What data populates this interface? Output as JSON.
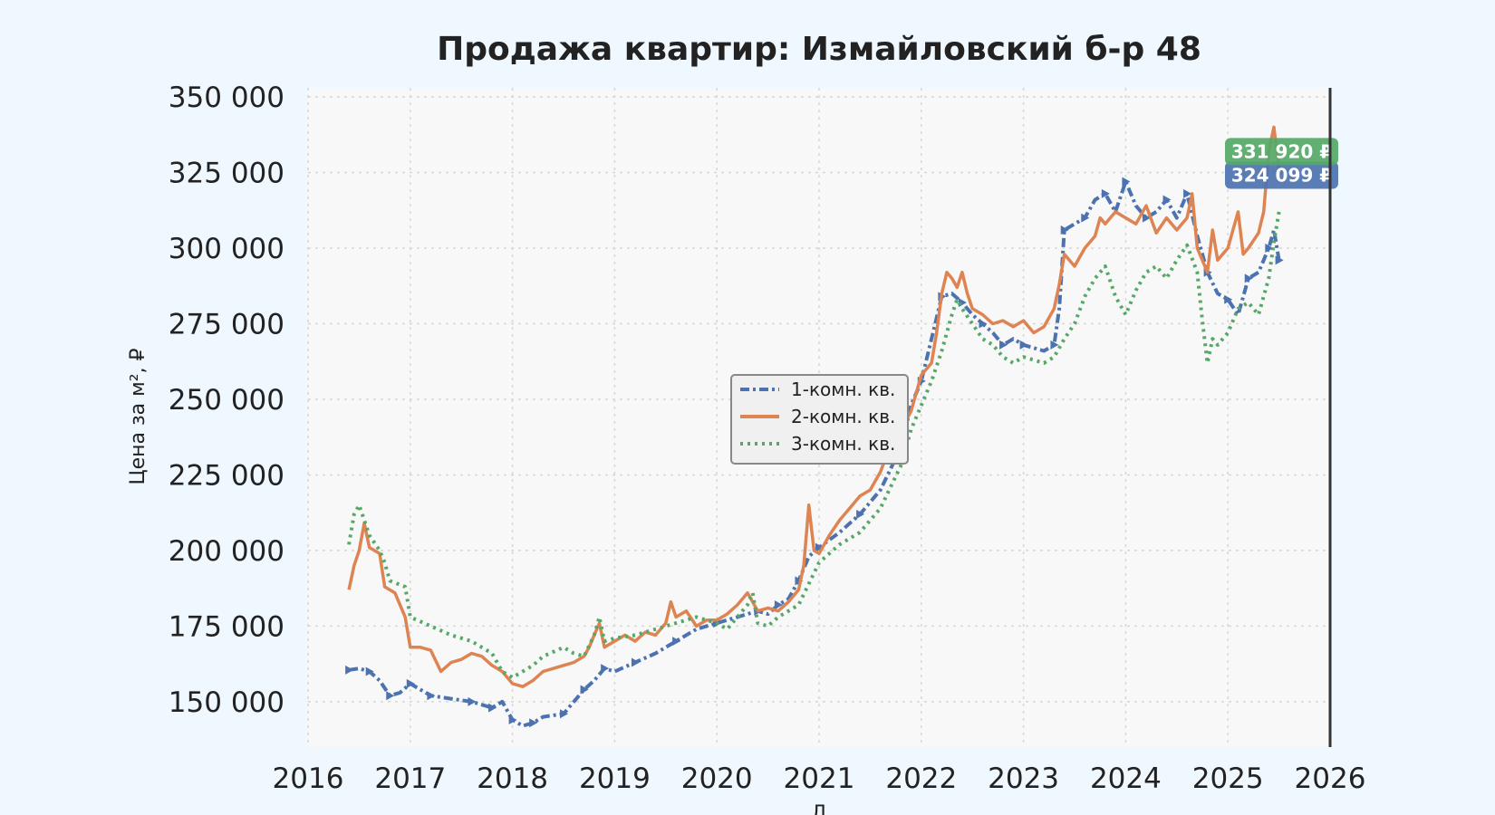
{
  "chart_data": {
    "type": "line",
    "title": "Продажа квартир: Измайловский б-р 48",
    "xlabel": "Д",
    "ylabel": "Цена за м², ₽",
    "xlim": [
      2016,
      2026
    ],
    "ylim": [
      135000,
      353000
    ],
    "x_ticks": [
      "2016",
      "2017",
      "2018",
      "2019",
      "2020",
      "2021",
      "2022",
      "2023",
      "2024",
      "2025",
      "2026"
    ],
    "y_ticks": [
      "150 000",
      "175 000",
      "200 000",
      "225 000",
      "250 000",
      "275 000",
      "300 000",
      "325 000",
      "350 000"
    ],
    "y_tick_values": [
      150000,
      175000,
      200000,
      225000,
      250000,
      275000,
      300000,
      325000,
      350000
    ],
    "grid": true,
    "legend_position": "center",
    "series": [
      {
        "name": "1-комн. кв.",
        "color": "#4c72b0",
        "style": "dash-dot with markers",
        "points": [
          [
            2016.4,
            160500
          ],
          [
            2016.5,
            161000
          ],
          [
            2016.6,
            160000
          ],
          [
            2016.7,
            157000
          ],
          [
            2016.8,
            152000
          ],
          [
            2016.9,
            153000
          ],
          [
            2017.0,
            156000
          ],
          [
            2017.1,
            154000
          ],
          [
            2017.2,
            152000
          ],
          [
            2017.4,
            151000
          ],
          [
            2017.6,
            150000
          ],
          [
            2017.7,
            149000
          ],
          [
            2017.8,
            148000
          ],
          [
            2017.9,
            150000
          ],
          [
            2018.0,
            144000
          ],
          [
            2018.1,
            142000
          ],
          [
            2018.2,
            143000
          ],
          [
            2018.3,
            145000
          ],
          [
            2018.5,
            146000
          ],
          [
            2018.6,
            150000
          ],
          [
            2018.7,
            154000
          ],
          [
            2018.8,
            157000
          ],
          [
            2018.9,
            161000
          ],
          [
            2019.0,
            160000
          ],
          [
            2019.2,
            163000
          ],
          [
            2019.4,
            166000
          ],
          [
            2019.6,
            170000
          ],
          [
            2019.8,
            174000
          ],
          [
            2020.0,
            176000
          ],
          [
            2020.2,
            178000
          ],
          [
            2020.4,
            180000
          ],
          [
            2020.5,
            179000
          ],
          [
            2020.6,
            182000
          ],
          [
            2020.7,
            184000
          ],
          [
            2020.8,
            190000
          ],
          [
            2020.9,
            198000
          ],
          [
            2021.0,
            201000
          ],
          [
            2021.2,
            206000
          ],
          [
            2021.4,
            212000
          ],
          [
            2021.6,
            220000
          ],
          [
            2021.8,
            234000
          ],
          [
            2021.9,
            248000
          ],
          [
            2022.0,
            256000
          ],
          [
            2022.1,
            270000
          ],
          [
            2022.2,
            284000
          ],
          [
            2022.3,
            285000
          ],
          [
            2022.4,
            282000
          ],
          [
            2022.5,
            278000
          ],
          [
            2022.6,
            275000
          ],
          [
            2022.7,
            272000
          ],
          [
            2022.8,
            268000
          ],
          [
            2022.9,
            270000
          ],
          [
            2023.0,
            268000
          ],
          [
            2023.2,
            266000
          ],
          [
            2023.3,
            268000
          ],
          [
            2023.35,
            280000
          ],
          [
            2023.4,
            306000
          ],
          [
            2023.5,
            308000
          ],
          [
            2023.6,
            310000
          ],
          [
            2023.7,
            316000
          ],
          [
            2023.8,
            318000
          ],
          [
            2023.9,
            312000
          ],
          [
            2024.0,
            322000
          ],
          [
            2024.1,
            314000
          ],
          [
            2024.2,
            310000
          ],
          [
            2024.3,
            312000
          ],
          [
            2024.4,
            316000
          ],
          [
            2024.5,
            310000
          ],
          [
            2024.6,
            318000
          ],
          [
            2024.7,
            304000
          ],
          [
            2024.8,
            292000
          ],
          [
            2024.9,
            285000
          ],
          [
            2025.0,
            283000
          ],
          [
            2025.1,
            278000
          ],
          [
            2025.2,
            290000
          ],
          [
            2025.3,
            292000
          ],
          [
            2025.4,
            300000
          ],
          [
            2025.45,
            306000
          ],
          [
            2025.5,
            296000
          ]
        ]
      },
      {
        "name": "2-комн. кв.",
        "color": "#dd8452",
        "style": "solid",
        "points": [
          [
            2016.4,
            187000
          ],
          [
            2016.45,
            195000
          ],
          [
            2016.5,
            200000
          ],
          [
            2016.55,
            209000
          ],
          [
            2016.6,
            201000
          ],
          [
            2016.7,
            199000
          ],
          [
            2016.75,
            188000
          ],
          [
            2016.85,
            186000
          ],
          [
            2016.95,
            178000
          ],
          [
            2017.0,
            168000
          ],
          [
            2017.1,
            168000
          ],
          [
            2017.2,
            167000
          ],
          [
            2017.3,
            160000
          ],
          [
            2017.4,
            163000
          ],
          [
            2017.5,
            164000
          ],
          [
            2017.6,
            166000
          ],
          [
            2017.7,
            165000
          ],
          [
            2017.8,
            162000
          ],
          [
            2017.9,
            160000
          ],
          [
            2018.0,
            156000
          ],
          [
            2018.1,
            155000
          ],
          [
            2018.2,
            157000
          ],
          [
            2018.3,
            160000
          ],
          [
            2018.4,
            161000
          ],
          [
            2018.5,
            162000
          ],
          [
            2018.6,
            163000
          ],
          [
            2018.7,
            165000
          ],
          [
            2018.75,
            168000
          ],
          [
            2018.8,
            172000
          ],
          [
            2018.85,
            176000
          ],
          [
            2018.9,
            168000
          ],
          [
            2019.0,
            170000
          ],
          [
            2019.1,
            172000
          ],
          [
            2019.2,
            170000
          ],
          [
            2019.3,
            173000
          ],
          [
            2019.4,
            172000
          ],
          [
            2019.5,
            176000
          ],
          [
            2019.55,
            183000
          ],
          [
            2019.6,
            178000
          ],
          [
            2019.7,
            180000
          ],
          [
            2019.8,
            175000
          ],
          [
            2019.9,
            177000
          ],
          [
            2020.0,
            177000
          ],
          [
            2020.1,
            179000
          ],
          [
            2020.2,
            182000
          ],
          [
            2020.3,
            186000
          ],
          [
            2020.4,
            180000
          ],
          [
            2020.5,
            181000
          ],
          [
            2020.6,
            180000
          ],
          [
            2020.7,
            183000
          ],
          [
            2020.8,
            187000
          ],
          [
            2020.85,
            195000
          ],
          [
            2020.9,
            215000
          ],
          [
            2020.95,
            200000
          ],
          [
            2021.0,
            199000
          ],
          [
            2021.1,
            205000
          ],
          [
            2021.2,
            210000
          ],
          [
            2021.3,
            214000
          ],
          [
            2021.4,
            218000
          ],
          [
            2021.5,
            220000
          ],
          [
            2021.6,
            226000
          ],
          [
            2021.7,
            235000
          ],
          [
            2021.8,
            240000
          ],
          [
            2021.9,
            246000
          ],
          [
            2022.0,
            258000
          ],
          [
            2022.1,
            262000
          ],
          [
            2022.15,
            272000
          ],
          [
            2022.2,
            285000
          ],
          [
            2022.25,
            292000
          ],
          [
            2022.3,
            290000
          ],
          [
            2022.35,
            287000
          ],
          [
            2022.4,
            292000
          ],
          [
            2022.45,
            285000
          ],
          [
            2022.5,
            280000
          ],
          [
            2022.6,
            278000
          ],
          [
            2022.7,
            275000
          ],
          [
            2022.8,
            276000
          ],
          [
            2022.9,
            274000
          ],
          [
            2023.0,
            276000
          ],
          [
            2023.1,
            272000
          ],
          [
            2023.2,
            274000
          ],
          [
            2023.3,
            280000
          ],
          [
            2023.35,
            288000
          ],
          [
            2023.4,
            298000
          ],
          [
            2023.5,
            294000
          ],
          [
            2023.6,
            300000
          ],
          [
            2023.7,
            304000
          ],
          [
            2023.75,
            310000
          ],
          [
            2023.8,
            308000
          ],
          [
            2023.9,
            312000
          ],
          [
            2024.0,
            310000
          ],
          [
            2024.1,
            308000
          ],
          [
            2024.2,
            314000
          ],
          [
            2024.3,
            305000
          ],
          [
            2024.4,
            310000
          ],
          [
            2024.5,
            306000
          ],
          [
            2024.6,
            310000
          ],
          [
            2024.65,
            318000
          ],
          [
            2024.7,
            300000
          ],
          [
            2024.8,
            292000
          ],
          [
            2024.85,
            306000
          ],
          [
            2024.9,
            296000
          ],
          [
            2025.0,
            300000
          ],
          [
            2025.05,
            306000
          ],
          [
            2025.1,
            312000
          ],
          [
            2025.15,
            298000
          ],
          [
            2025.2,
            300000
          ],
          [
            2025.3,
            305000
          ],
          [
            2025.35,
            312000
          ],
          [
            2025.4,
            332000
          ],
          [
            2025.45,
            340000
          ],
          [
            2025.5,
            326000
          ]
        ]
      },
      {
        "name": "3-комн. кв.",
        "color": "#55a868",
        "style": "dotted",
        "points": [
          [
            2016.4,
            202000
          ],
          [
            2016.45,
            212000
          ],
          [
            2016.5,
            215000
          ],
          [
            2016.6,
            205000
          ],
          [
            2016.7,
            200000
          ],
          [
            2016.75,
            196000
          ],
          [
            2016.8,
            190000
          ],
          [
            2016.95,
            188000
          ],
          [
            2017.0,
            178000
          ],
          [
            2017.2,
            175000
          ],
          [
            2017.4,
            172000
          ],
          [
            2017.6,
            170000
          ],
          [
            2017.8,
            166000
          ],
          [
            2017.9,
            160000
          ],
          [
            2018.0,
            158000
          ],
          [
            2018.2,
            162000
          ],
          [
            2018.3,
            165000
          ],
          [
            2018.5,
            168000
          ],
          [
            2018.6,
            166000
          ],
          [
            2018.7,
            165000
          ],
          [
            2018.8,
            172000
          ],
          [
            2018.85,
            178000
          ],
          [
            2018.9,
            170000
          ],
          [
            2019.0,
            171000
          ],
          [
            2019.2,
            172000
          ],
          [
            2019.4,
            174000
          ],
          [
            2019.6,
            176000
          ],
          [
            2019.8,
            178000
          ],
          [
            2020.0,
            176000
          ],
          [
            2020.1,
            174000
          ],
          [
            2020.2,
            178000
          ],
          [
            2020.3,
            182000
          ],
          [
            2020.35,
            186000
          ],
          [
            2020.4,
            176000
          ],
          [
            2020.5,
            175000
          ],
          [
            2020.6,
            178000
          ],
          [
            2020.7,
            180000
          ],
          [
            2020.8,
            182000
          ],
          [
            2021.0,
            196000
          ],
          [
            2021.2,
            202000
          ],
          [
            2021.4,
            206000
          ],
          [
            2021.6,
            214000
          ],
          [
            2021.8,
            228000
          ],
          [
            2021.9,
            240000
          ],
          [
            2022.0,
            248000
          ],
          [
            2022.1,
            256000
          ],
          [
            2022.2,
            266000
          ],
          [
            2022.3,
            278000
          ],
          [
            2022.35,
            283000
          ],
          [
            2022.4,
            280000
          ],
          [
            2022.5,
            275000
          ],
          [
            2022.6,
            270000
          ],
          [
            2022.7,
            268000
          ],
          [
            2022.8,
            264000
          ],
          [
            2022.9,
            262000
          ],
          [
            2023.0,
            264000
          ],
          [
            2023.2,
            262000
          ],
          [
            2023.3,
            264000
          ],
          [
            2023.4,
            270000
          ],
          [
            2023.5,
            275000
          ],
          [
            2023.6,
            284000
          ],
          [
            2023.7,
            290000
          ],
          [
            2023.8,
            294000
          ],
          [
            2023.9,
            284000
          ],
          [
            2024.0,
            278000
          ],
          [
            2024.1,
            286000
          ],
          [
            2024.2,
            292000
          ],
          [
            2024.3,
            294000
          ],
          [
            2024.4,
            290000
          ],
          [
            2024.5,
            296000
          ],
          [
            2024.6,
            301000
          ],
          [
            2024.7,
            292000
          ],
          [
            2024.75,
            276000
          ],
          [
            2024.8,
            262000
          ],
          [
            2024.85,
            270000
          ],
          [
            2024.9,
            268000
          ],
          [
            2025.0,
            272000
          ],
          [
            2025.1,
            280000
          ],
          [
            2025.2,
            282000
          ],
          [
            2025.3,
            278000
          ],
          [
            2025.4,
            290000
          ],
          [
            2025.45,
            302000
          ],
          [
            2025.5,
            312000
          ]
        ]
      }
    ],
    "last_value_badges": [
      {
        "label": "331 920 ₽",
        "value": 331920,
        "color": "#55a868"
      },
      {
        "label": "324 099 ₽",
        "value": 324099,
        "color": "#4c72b0"
      }
    ]
  }
}
